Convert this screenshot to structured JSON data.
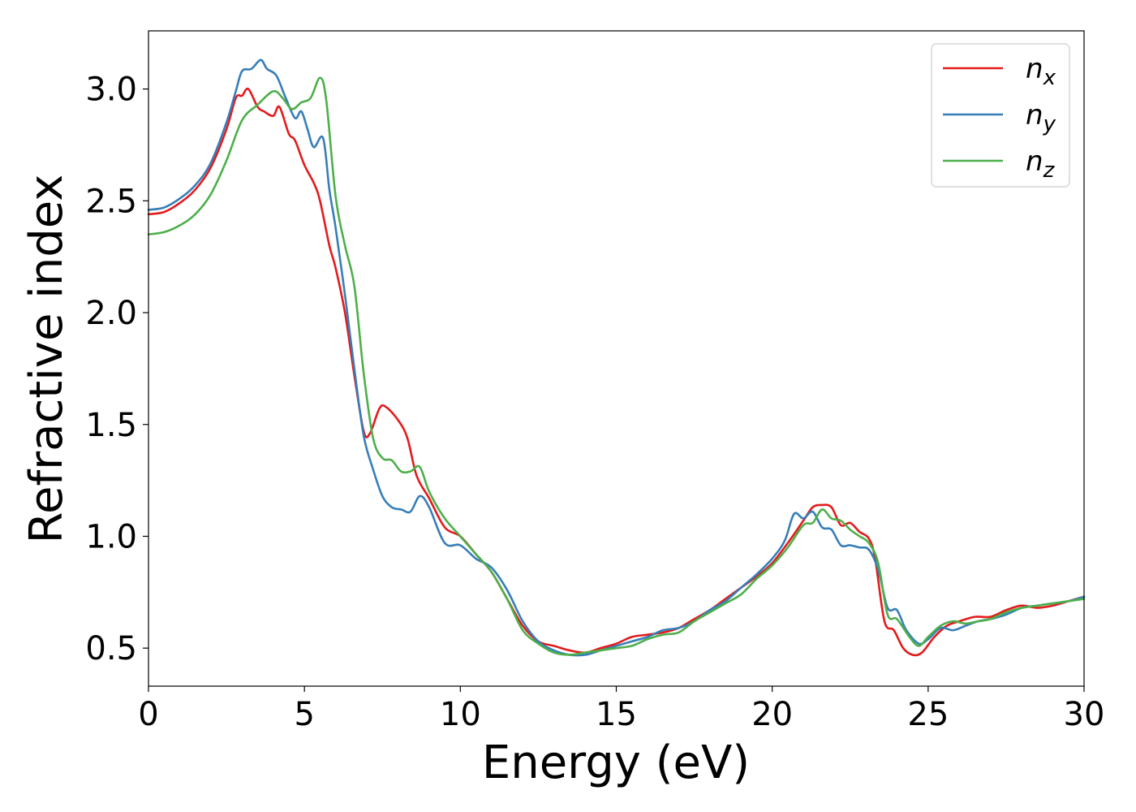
{
  "chart_data": {
    "type": "line",
    "title": "",
    "xlabel": "Energy (eV)",
    "ylabel": "Refractive index",
    "xlim": [
      0,
      30
    ],
    "ylim": [
      0.33,
      3.26
    ],
    "xticks": [
      0,
      5,
      10,
      15,
      20,
      25,
      30
    ],
    "xtick_labels": [
      "0",
      "5",
      "10",
      "15",
      "20",
      "25",
      "30"
    ],
    "yticks": [
      0.5,
      1.0,
      1.5,
      2.0,
      2.5,
      3.0
    ],
    "ytick_labels": [
      "0.5",
      "1.0",
      "1.5",
      "2.0",
      "2.5",
      "3.0"
    ],
    "grid": false,
    "legend_position": "top-right",
    "series": [
      {
        "name": "n_x",
        "label_main": "n",
        "label_sub": "x",
        "color": "#e41a1c",
        "x": [
          0,
          0.5,
          1,
          1.5,
          2,
          2.5,
          2.8,
          3.0,
          3.2,
          3.5,
          3.7,
          4.0,
          4.2,
          4.5,
          4.7,
          5.0,
          5.3,
          5.5,
          5.8,
          6.0,
          6.3,
          6.6,
          6.9,
          7.1,
          7.4,
          7.6,
          8.0,
          8.3,
          8.6,
          9.0,
          9.5,
          10,
          10.5,
          11,
          11.5,
          12,
          12.5,
          13,
          13.5,
          14,
          14.5,
          15,
          15.5,
          16,
          16.5,
          17,
          17.5,
          18,
          18.5,
          19,
          19.5,
          20,
          20.5,
          21,
          21.3,
          21.6,
          21.9,
          22.2,
          22.5,
          22.8,
          23.1,
          23.3,
          23.6,
          23.9,
          24.2,
          24.5,
          24.8,
          25.2,
          25.6,
          26,
          26.5,
          27,
          27.5,
          28,
          28.5,
          29,
          29.5,
          30
        ],
        "y": [
          2.44,
          2.45,
          2.49,
          2.55,
          2.65,
          2.82,
          2.96,
          2.97,
          3.0,
          2.92,
          2.9,
          2.88,
          2.92,
          2.8,
          2.77,
          2.66,
          2.58,
          2.5,
          2.3,
          2.2,
          2.0,
          1.72,
          1.47,
          1.46,
          1.57,
          1.58,
          1.52,
          1.44,
          1.27,
          1.17,
          1.04,
          1.0,
          0.92,
          0.84,
          0.72,
          0.6,
          0.53,
          0.51,
          0.49,
          0.48,
          0.5,
          0.52,
          0.55,
          0.56,
          0.57,
          0.59,
          0.63,
          0.67,
          0.72,
          0.77,
          0.82,
          0.88,
          0.97,
          1.07,
          1.13,
          1.14,
          1.13,
          1.05,
          1.06,
          1.02,
          0.99,
          0.9,
          0.62,
          0.58,
          0.5,
          0.47,
          0.48,
          0.55,
          0.6,
          0.62,
          0.64,
          0.64,
          0.67,
          0.69,
          0.68,
          0.69,
          0.71,
          0.73
        ]
      },
      {
        "name": "n_y",
        "label_main": "n",
        "label_sub": "y",
        "color": "#377eb8",
        "x": [
          0,
          0.5,
          1,
          1.5,
          2,
          2.5,
          2.8,
          3.0,
          3.3,
          3.6,
          3.8,
          4.1,
          4.4,
          4.7,
          4.9,
          5.1,
          5.3,
          5.6,
          5.8,
          6.0,
          6.3,
          6.6,
          6.9,
          7.2,
          7.5,
          7.8,
          8.1,
          8.4,
          8.7,
          9.0,
          9.5,
          10,
          10.5,
          11,
          11.5,
          12,
          12.5,
          13,
          13.5,
          14,
          14.5,
          15,
          15.5,
          16,
          16.5,
          17,
          17.5,
          18,
          18.5,
          19,
          19.5,
          20,
          20.4,
          20.7,
          21.0,
          21.3,
          21.6,
          21.9,
          22.2,
          22.5,
          22.8,
          23.1,
          23.4,
          23.7,
          24.0,
          24.3,
          24.7,
          25.0,
          25.4,
          25.8,
          26.2,
          26.6,
          27,
          27.5,
          28,
          28.5,
          29,
          29.5,
          30
        ],
        "y": [
          2.46,
          2.47,
          2.51,
          2.57,
          2.67,
          2.85,
          2.99,
          3.08,
          3.09,
          3.13,
          3.09,
          3.06,
          2.96,
          2.87,
          2.9,
          2.82,
          2.74,
          2.78,
          2.55,
          2.38,
          2.08,
          1.75,
          1.45,
          1.3,
          1.18,
          1.13,
          1.12,
          1.11,
          1.18,
          1.13,
          0.97,
          0.96,
          0.9,
          0.86,
          0.76,
          0.62,
          0.53,
          0.49,
          0.47,
          0.47,
          0.49,
          0.51,
          0.53,
          0.55,
          0.58,
          0.59,
          0.62,
          0.67,
          0.71,
          0.77,
          0.83,
          0.9,
          0.98,
          1.1,
          1.08,
          1.11,
          1.04,
          1.03,
          0.96,
          0.96,
          0.95,
          0.94,
          0.85,
          0.68,
          0.67,
          0.58,
          0.52,
          0.54,
          0.59,
          0.58,
          0.6,
          0.62,
          0.63,
          0.65,
          0.68,
          0.69,
          0.7,
          0.71,
          0.73
        ]
      },
      {
        "name": "n_z",
        "label_main": "n",
        "label_sub": "z",
        "color": "#4daf4a",
        "x": [
          0,
          0.5,
          1,
          1.5,
          2,
          2.5,
          3.0,
          3.5,
          4.0,
          4.3,
          4.6,
          4.9,
          5.2,
          5.5,
          5.7,
          6.0,
          6.3,
          6.6,
          6.9,
          7.2,
          7.5,
          7.8,
          8.1,
          8.4,
          8.7,
          9.0,
          9.5,
          10,
          10.5,
          11,
          11.5,
          12,
          12.5,
          13,
          13.5,
          14,
          14.5,
          15,
          15.5,
          16,
          16.5,
          17,
          17.5,
          18,
          18.5,
          19,
          19.5,
          20,
          20.5,
          21.0,
          21.3,
          21.6,
          21.9,
          22.2,
          22.5,
          22.8,
          23.1,
          23.4,
          23.7,
          24.0,
          24.4,
          24.7,
          25.0,
          25.4,
          25.8,
          26.2,
          26.6,
          27,
          27.5,
          28,
          28.5,
          29,
          29.5,
          30
        ],
        "y": [
          2.35,
          2.36,
          2.39,
          2.44,
          2.53,
          2.68,
          2.86,
          2.93,
          2.99,
          2.96,
          2.91,
          2.94,
          2.96,
          3.05,
          2.95,
          2.52,
          2.3,
          2.12,
          1.73,
          1.44,
          1.35,
          1.34,
          1.29,
          1.29,
          1.31,
          1.2,
          1.08,
          1.0,
          0.92,
          0.84,
          0.72,
          0.58,
          0.52,
          0.48,
          0.47,
          0.48,
          0.49,
          0.5,
          0.51,
          0.54,
          0.56,
          0.57,
          0.62,
          0.66,
          0.7,
          0.74,
          0.81,
          0.87,
          0.95,
          1.05,
          1.06,
          1.12,
          1.08,
          1.07,
          1.03,
          1.0,
          0.97,
          0.88,
          0.65,
          0.63,
          0.55,
          0.51,
          0.55,
          0.6,
          0.62,
          0.61,
          0.62,
          0.63,
          0.66,
          0.68,
          0.69,
          0.7,
          0.71,
          0.72
        ]
      }
    ]
  }
}
